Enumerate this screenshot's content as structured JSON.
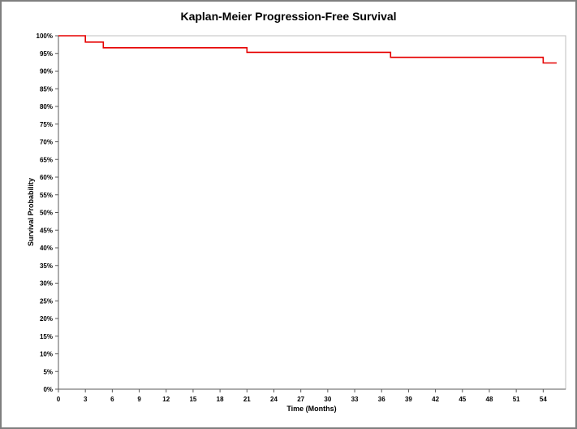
{
  "chart_data": {
    "type": "line",
    "subtype": "step",
    "title": "Kaplan-Meier Progression-Free Survival",
    "xlabel": "Time (Months)",
    "ylabel": "Survival Probability",
    "line_color": "#e60000",
    "axis_color": "#595959",
    "plot_border_color": "#bfbfbf",
    "background": "#ffffff",
    "grid": "none",
    "legend": "none",
    "xlim": [
      0,
      56.5
    ],
    "ylim": [
      0,
      100
    ],
    "x_ticks": [
      0,
      3,
      6,
      9,
      12,
      15,
      18,
      21,
      24,
      27,
      30,
      33,
      36,
      39,
      42,
      45,
      48,
      51,
      54
    ],
    "y_ticks": [
      0,
      5,
      10,
      15,
      20,
      25,
      30,
      35,
      40,
      45,
      50,
      55,
      60,
      65,
      70,
      75,
      80,
      85,
      90,
      95,
      100
    ],
    "y_tick_suffix": "%",
    "series": [
      {
        "name": "Progression-Free Survival",
        "steps": [
          {
            "time": 0,
            "survival": 100
          },
          {
            "time": 3,
            "survival": 98.2
          },
          {
            "time": 5,
            "survival": 96.6
          },
          {
            "time": 21,
            "survival": 95.3
          },
          {
            "time": 37,
            "survival": 93.9
          },
          {
            "time": 54,
            "survival": 92.3
          }
        ],
        "end_time": 55.5
      }
    ]
  }
}
